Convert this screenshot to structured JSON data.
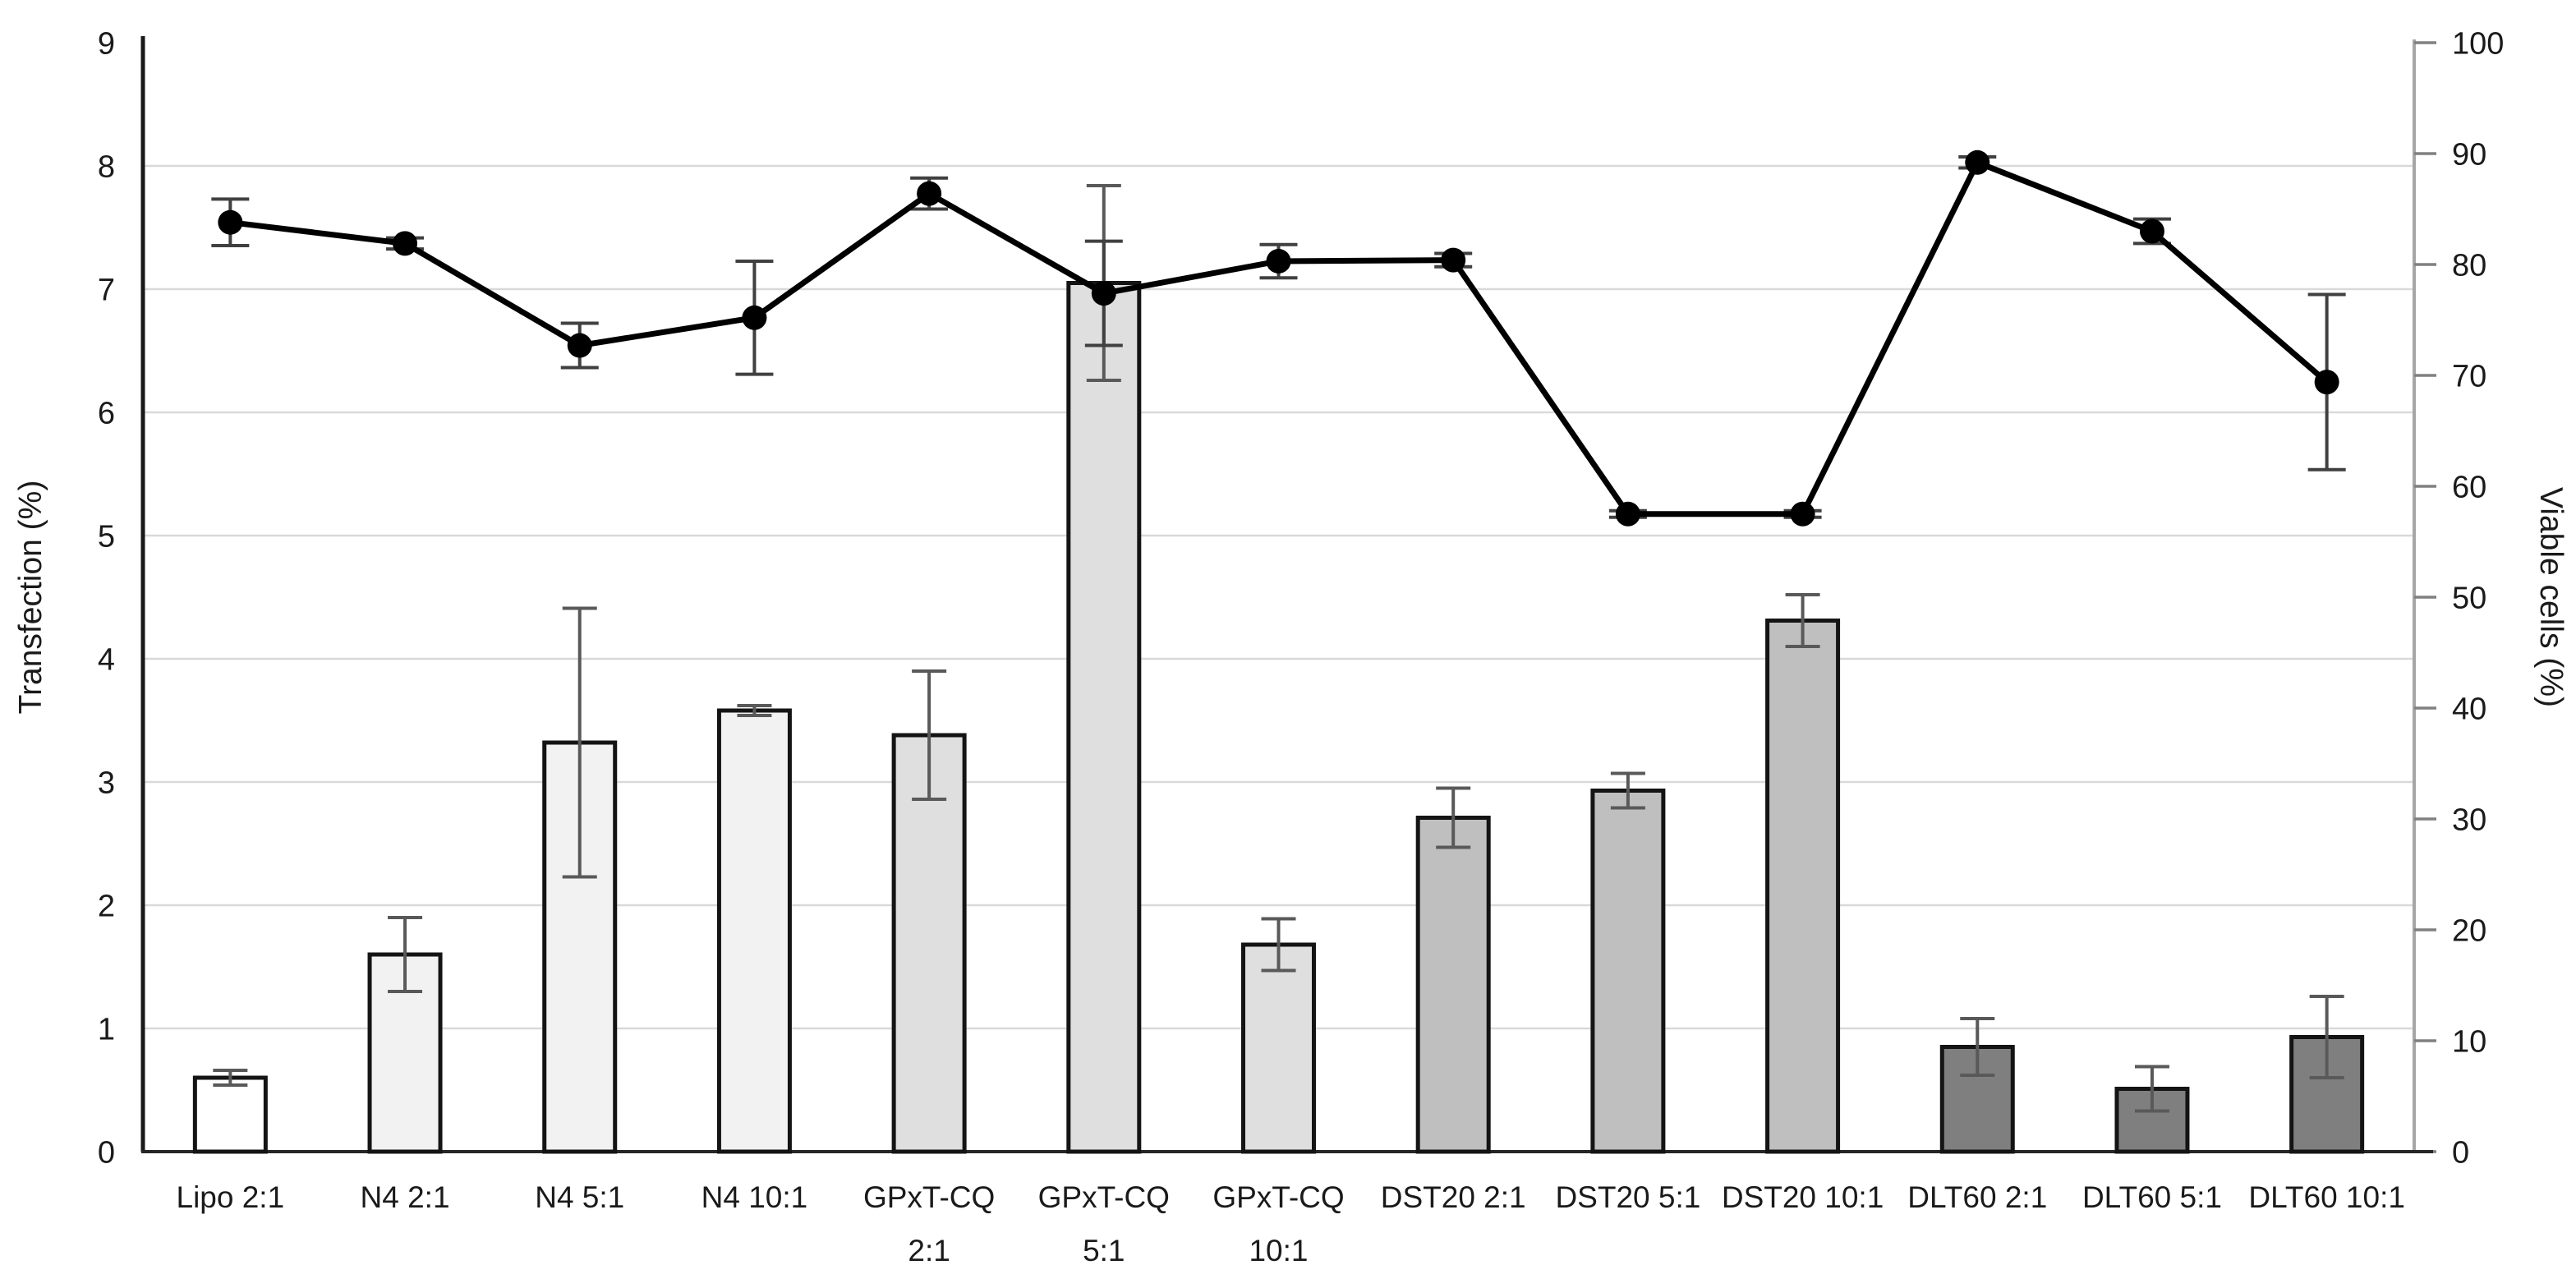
{
  "figure": {
    "background": "#ffffff",
    "title": ""
  },
  "chart_data": {
    "type": "combo-bar-line",
    "categories": [
      "Lipo 2:1",
      "N4 2:1",
      "N4 5:1",
      "N4 10:1",
      "GPxT-CQ 2:1",
      "GPxT-CQ 5:1",
      "GPxT-CQ 10:1",
      "DST20 2:1",
      "DST20 5:1",
      "DST20 10:1",
      "DLT60 2:1",
      "DLT60 5:1",
      "DLT60 10:1"
    ],
    "category_label_lines": [
      [
        "Lipo 2:1"
      ],
      [
        "N4 2:1"
      ],
      [
        "N4 5:1"
      ],
      [
        "N4 10:1"
      ],
      [
        "GPxT-CQ",
        "2:1"
      ],
      [
        "GPxT-CQ",
        "5:1"
      ],
      [
        "GPxT-CQ",
        "10:1"
      ],
      [
        "DST20 2:1"
      ],
      [
        "DST20 5:1"
      ],
      [
        "DST20 10:1"
      ],
      [
        "DLT60 2:1"
      ],
      [
        "DLT60 5:1"
      ],
      [
        "DLT60 10:1"
      ]
    ],
    "left_axis": {
      "label": "Transfection (%)",
      "min": 0,
      "max": 9,
      "tick_step": 1,
      "ticks": [
        "0",
        "1",
        "2",
        "3",
        "4",
        "5",
        "6",
        "7",
        "8",
        "9"
      ]
    },
    "right_axis": {
      "label": "Viable cells (%)",
      "min": 0,
      "max": 100,
      "tick_step": 10,
      "ticks": [
        "0",
        "10",
        "20",
        "30",
        "40",
        "50",
        "60",
        "70",
        "80",
        "90",
        "100"
      ]
    },
    "grid": {
      "show": true,
      "follows": "left_axis"
    },
    "legend": {
      "show": false
    },
    "series": [
      {
        "name": "Transfection (%)",
        "type": "bar",
        "axis": "left",
        "values": [
          0.6,
          1.6,
          3.32,
          3.58,
          3.38,
          7.05,
          1.68,
          2.71,
          2.93,
          4.31,
          0.85,
          0.51,
          0.93
        ],
        "errors": [
          0.06,
          0.3,
          1.09,
          0.04,
          0.52,
          0.79,
          0.21,
          0.24,
          0.14,
          0.21,
          0.23,
          0.18,
          0.33
        ],
        "fills": [
          "#ffffff",
          "#f2f2f2",
          "#f2f2f2",
          "#f2f2f2",
          "#dfdfdf",
          "#dfdfdf",
          "#dfdfdf",
          "#bfbfbf",
          "#bfbfbf",
          "#bfbfbf",
          "#7f7f7f",
          "#7f7f7f",
          "#7f7f7f"
        ]
      },
      {
        "name": "Viable cells (%)",
        "type": "line",
        "axis": "right",
        "values": [
          83.8,
          81.9,
          72.7,
          75.2,
          86.4,
          77.4,
          80.3,
          80.4,
          57.5,
          57.5,
          89.2,
          83.0,
          69.4
        ],
        "errors": [
          2.1,
          0.5,
          2.0,
          5.1,
          1.4,
          4.7,
          1.5,
          0.6,
          0.3,
          0.3,
          0.5,
          1.1,
          7.9
        ],
        "marker": "circle"
      }
    ]
  },
  "style": {
    "gridline_color": "#d9d9d9",
    "left_axis_color": "#1a1a1a",
    "bottom_axis_color": "#262626",
    "right_axis_color": "#a6a6a6",
    "right_tick_color": "#808080",
    "bar_border_color": "#141414",
    "bar_error_color": "#595959",
    "line_color": "#000000",
    "line_error_color": "#404040",
    "marker_color": "#000000",
    "text_color": "#1a1a1a"
  }
}
